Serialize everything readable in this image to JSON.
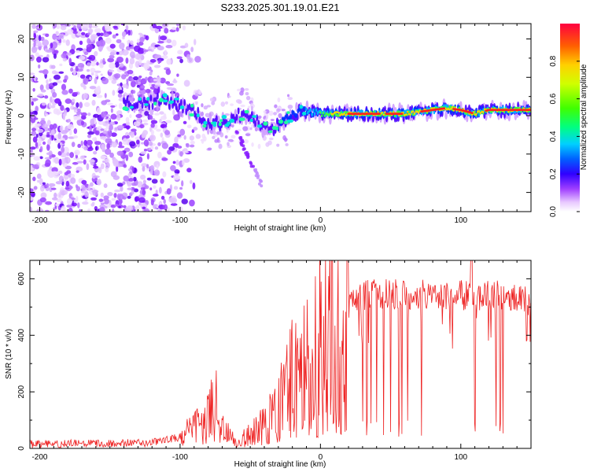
{
  "title": "S233.2025.301.19.01.E21",
  "chart_data": [
    {
      "type": "heatmap",
      "name": "spectrogram",
      "xlabel": "Height of straight line (km)",
      "ylabel": "Frequency (Hz)",
      "xlim": [
        -207,
        150
      ],
      "ylim": [
        -25,
        24
      ],
      "xticks": [
        -200,
        -100,
        0,
        100
      ],
      "yticks": [
        -20,
        -10,
        0,
        10,
        20
      ],
      "colorbar": {
        "label": "Normalized spectral amplitude",
        "range": [
          0,
          1
        ],
        "ticks": [
          0.0,
          0.2,
          0.4,
          0.6,
          0.8
        ]
      },
      "ridge": {
        "x": [
          -140,
          -125,
          -110,
          -100,
          -90,
          -80,
          -70,
          -60,
          -50,
          -42,
          -35,
          -25,
          -15,
          -5,
          0,
          10,
          20,
          40,
          60,
          80,
          90,
          100,
          110,
          120,
          150
        ],
        "y": [
          3,
          3.5,
          4,
          3,
          1,
          -2,
          -2,
          0,
          0,
          -3,
          -4,
          -1,
          1,
          1,
          0.5,
          0.5,
          0.5,
          0.5,
          0.5,
          1.5,
          2,
          1.5,
          0.5,
          1.5,
          1.5
        ]
      }
    },
    {
      "type": "line",
      "name": "snr",
      "xlabel": "Height of straight line (km)",
      "ylabel": "SNR (10 * v/v)",
      "xlim": [
        -207,
        150
      ],
      "ylim": [
        0,
        665
      ],
      "xticks": [
        -200,
        -100,
        0,
        100
      ],
      "yticks": [
        0,
        200,
        400,
        600
      ],
      "color": "#ee2222",
      "envelope": {
        "x": [
          -207,
          -120,
          -110,
          -100,
          -90,
          -80,
          -75,
          -70,
          -60,
          -50,
          -40,
          -30,
          -20,
          -10,
          0,
          10,
          20,
          30,
          40,
          60,
          80,
          100,
          120,
          150
        ],
        "y": [
          15,
          20,
          30,
          40,
          70,
          100,
          170,
          70,
          20,
          50,
          80,
          150,
          250,
          300,
          380,
          440,
          500,
          540,
          550,
          540,
          545,
          540,
          545,
          515
        ]
      },
      "dips_x": [
        30,
        33,
        36,
        40,
        45,
        50,
        56,
        58,
        62,
        72,
        110,
        125,
        128,
        130
      ]
    }
  ]
}
